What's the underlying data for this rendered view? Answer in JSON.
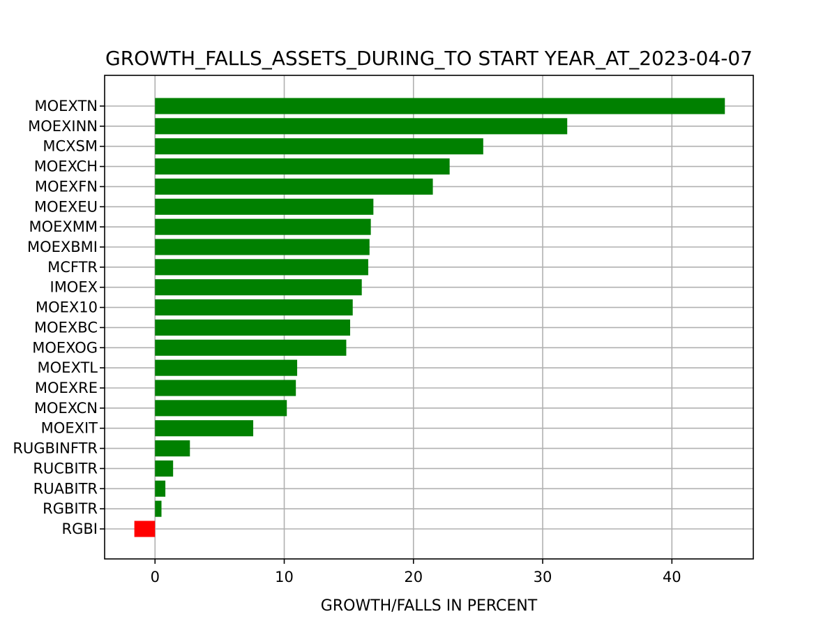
{
  "chart_data": {
    "type": "bar",
    "orientation": "horizontal",
    "title": "GROWTH_FALLS_ASSETS_DURING_TO START YEAR_AT_2023-04-07",
    "xlabel": "GROWTH/FALLS IN PERCENT",
    "ylabel": "",
    "xlim": [
      -3.9,
      46.3
    ],
    "xticks": [
      0,
      10,
      20,
      30,
      40
    ],
    "grid": true,
    "positive_color": "#008000",
    "negative_color": "#ff0000",
    "categories": [
      "MOEXTN",
      "MOEXINN",
      "MCXSM",
      "MOEXCH",
      "MOEXFN",
      "MOEXEU",
      "MOEXMM",
      "MOEXBMI",
      "MCFTR",
      "IMOEX",
      "MOEX10",
      "MOEXBC",
      "MOEXOG",
      "MOEXTL",
      "MOEXRE",
      "MOEXCN",
      "MOEXIT",
      "RUGBINFTR",
      "RUCBITR",
      "RUABITR",
      "RGBITR",
      "RGBI"
    ],
    "values": [
      44.1,
      31.9,
      25.4,
      22.8,
      21.5,
      16.9,
      16.7,
      16.6,
      16.5,
      16.0,
      15.3,
      15.1,
      14.8,
      11.0,
      10.9,
      10.2,
      7.6,
      2.7,
      1.4,
      0.8,
      0.5,
      -1.6
    ]
  }
}
